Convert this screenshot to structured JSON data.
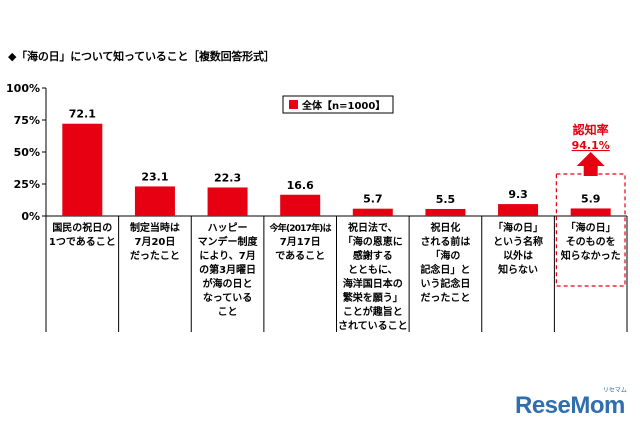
{
  "title": "◆「海の日」について知っていること［複数回答形式］",
  "chart_data": {
    "type": "bar",
    "title": "◆「海の日」について知っていること［複数回答形式］",
    "ylim": [
      0,
      100
    ],
    "yticks": [
      "0%",
      "25%",
      "50%",
      "75%",
      "100%"
    ],
    "legend": "全体【n=1000】",
    "legend_position": "top-center",
    "grid": false,
    "bar_color": "#e60012",
    "categories": [
      [
        "国民の祝日の",
        "1つであること"
      ],
      [
        "制定当時は",
        "7月20日",
        "だったこと"
      ],
      [
        "ハッピー",
        "マンデー制度",
        "により、7月",
        "の第3月曜日",
        "が海の日と",
        "なっている",
        "こと"
      ],
      [
        "今年(2017年)は",
        "7月17日",
        "であること"
      ],
      [
        "祝日法で、",
        "「海の恩恵に",
        "感謝する",
        "とともに、",
        "海洋国日本の",
        "繁栄を願う」",
        "ことが趣旨と",
        "されていること"
      ],
      [
        "祝日化",
        "される前は",
        "「海の",
        "記念日」と",
        "いう記念日",
        "だったこと"
      ],
      [
        "「海の日」",
        "という名称",
        "以外は",
        "知らない"
      ],
      [
        "「海の日」",
        "そのものを",
        "知らなかった"
      ]
    ],
    "values": [
      72.1,
      23.1,
      22.3,
      16.6,
      5.7,
      5.5,
      9.3,
      5.9
    ],
    "value_labels": [
      "72.1",
      "23.1",
      "22.3",
      "16.6",
      "5.7",
      "5.5",
      "9.3",
      "5.9"
    ],
    "annotation": {
      "label": "認知率",
      "value": "94.1%",
      "color": "#e60012"
    }
  },
  "watermark": {
    "text": "ReseMom",
    "sub": "リセマム"
  }
}
